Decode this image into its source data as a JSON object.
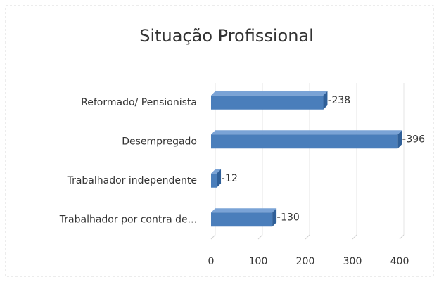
{
  "chart_data": {
    "type": "bar",
    "orientation": "horizontal",
    "title": "Situação Profissional",
    "categories": [
      "Reformado/ Pensionista",
      "Desempregado",
      "Trabalhador independente",
      "Trabalhador por contra de..."
    ],
    "values": [
      238,
      396,
      12,
      130
    ],
    "color": "#4a7ebb",
    "xlim": [
      0,
      400
    ],
    "xticks": [
      0,
      100,
      200,
      300,
      400
    ],
    "grid": true
  }
}
